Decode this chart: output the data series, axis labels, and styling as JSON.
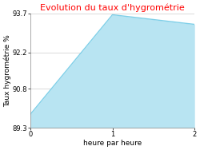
{
  "title": "Evolution du taux d'hygrométrie",
  "title_color": "#ff0000",
  "xlabel": "heure par heure",
  "ylabel": "Taux hygrométrie %",
  "x": [
    0,
    1,
    2
  ],
  "y": [
    89.82,
    93.65,
    93.28
  ],
  "ylim": [
    89.3,
    93.7
  ],
  "xlim": [
    0,
    2
  ],
  "yticks": [
    89.3,
    90.8,
    92.2,
    93.7
  ],
  "xticks": [
    0,
    1,
    2
  ],
  "line_color": "#7ecfe8",
  "fill_color": "#b8e4f2",
  "fill_alpha": 1.0,
  "background_color": "#ffffff",
  "axes_background": "#ffffff",
  "title_fontsize": 8,
  "label_fontsize": 6.5,
  "tick_fontsize": 6,
  "grid_color": "#cccccc",
  "figsize": [
    2.5,
    1.88
  ],
  "dpi": 100
}
